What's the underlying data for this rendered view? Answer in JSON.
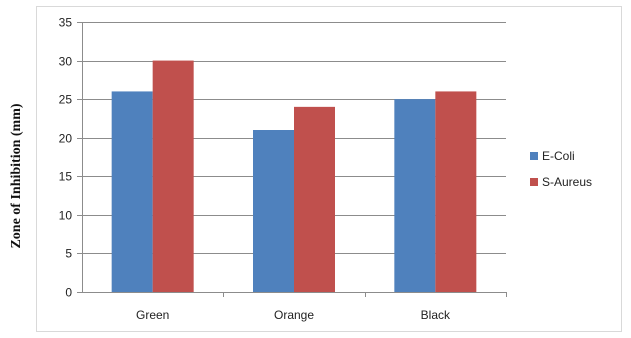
{
  "chart_data": {
    "type": "bar",
    "categories": [
      "Green",
      "Orange",
      "Black"
    ],
    "series": [
      {
        "name": "E-Coli",
        "values": [
          26,
          21,
          25
        ],
        "color": "#4f81bd"
      },
      {
        "name": "S-Aureus",
        "values": [
          30,
          24,
          26
        ],
        "color": "#c0504d"
      }
    ],
    "title": "",
    "xlabel": "",
    "ylabel": "Zone of Inhibition (mm)",
    "ylim": [
      0,
      35
    ],
    "yticks": [
      "0",
      "5",
      "10",
      "15",
      "20",
      "25",
      "30",
      "35"
    ],
    "grid": true,
    "legend_position": "right"
  }
}
